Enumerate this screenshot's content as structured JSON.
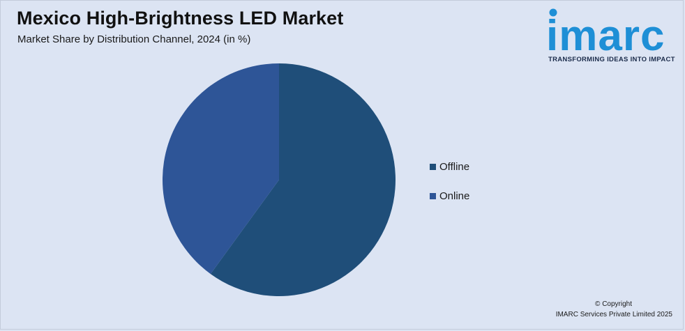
{
  "header": {
    "title": "Mexico High-Brightness LED Market",
    "subtitle": "Market Share by Distribution Channel, 2024 (in %)"
  },
  "logo": {
    "wordmark": "imarc",
    "tagline": "TRANSFORMING IDEAS INTO IMPACT",
    "color": "#1e8fd6"
  },
  "chart_data": {
    "type": "pie",
    "title": "Mexico High-Brightness LED Market",
    "subtitle": "Market Share by Distribution Channel, 2024 (in %)",
    "categories": [
      "Offline",
      "Online"
    ],
    "values": [
      60,
      40
    ],
    "colors": [
      "#1f4e79",
      "#2e5597"
    ],
    "start_angle_deg": 0,
    "direction": "clockwise",
    "legend_position": "right",
    "data_labels": false
  },
  "footer": {
    "copyright": "© Copyright",
    "company": "IMARC Services Private Limited 2025"
  }
}
